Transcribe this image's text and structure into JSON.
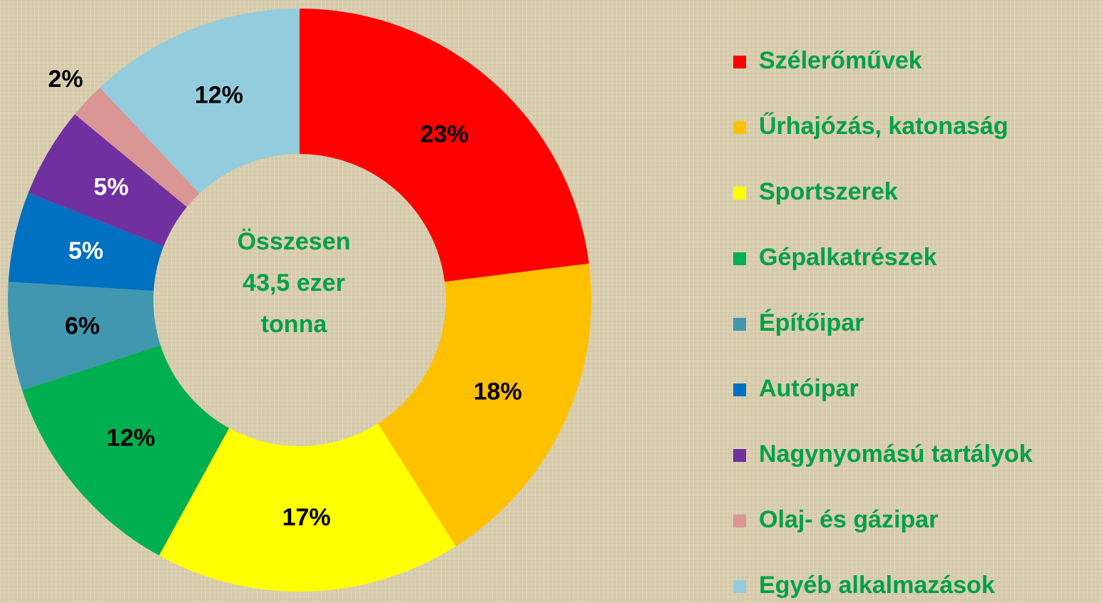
{
  "chart_data": {
    "type": "donut",
    "center_label": [
      "Összesen",
      "43,5 ezer",
      "tonna"
    ],
    "categories": [
      "Szélerőművek",
      "Űrhajózás, katonaság",
      "Sportszerek",
      "Gépalkatrészek",
      "Építőipar",
      "Autóipar",
      "Nagynyomású tartályok",
      "Olaj- és gázipar",
      "Egyéb alkalmazások"
    ],
    "values": [
      23,
      18,
      17,
      12,
      6,
      5,
      5,
      2,
      12
    ],
    "value_labels": [
      "23%",
      "18%",
      "17%",
      "12%",
      "6%",
      "5%",
      "5%",
      "2%",
      "12%"
    ],
    "colors": [
      "#ff0000",
      "#ffc000",
      "#ffff00",
      "#00b050",
      "#4197b0",
      "#0070c0",
      "#7030a0",
      "#d99694",
      "#93cddd"
    ],
    "label_colors": [
      "#000000",
      "#000000",
      "#000000",
      "#000000",
      "#000000",
      "#ffffff",
      "#ffffff",
      "#000000",
      "#000000"
    ],
    "text_color": "#00a04a",
    "legend": "right"
  }
}
